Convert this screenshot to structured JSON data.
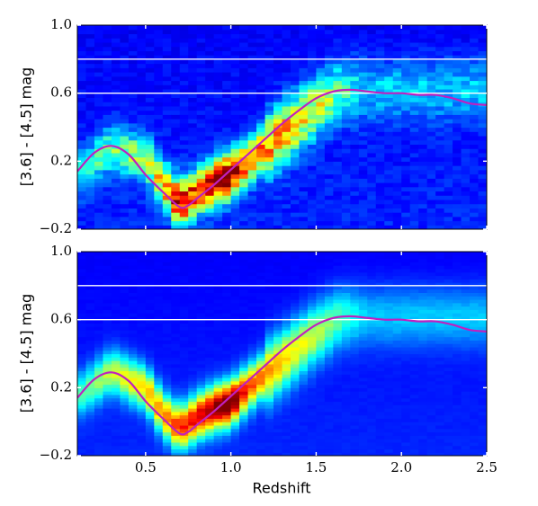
{
  "chart_data": [
    {
      "type": "heatmap",
      "title": "",
      "xlabel": "",
      "ylabel": "[3.6] - [4.5] mag",
      "xlim": [
        0.1,
        2.5
      ],
      "ylim": [
        -0.2,
        1.0
      ],
      "x_ticks": [
        0.5,
        1.0,
        1.5,
        2.0,
        2.5
      ],
      "x_tick_labels": [],
      "y_ticks": [
        -0.2,
        0.2,
        0.6,
        1.0
      ],
      "y_tick_labels": [
        "−0.2",
        "0.2",
        "0.6",
        "1.0"
      ],
      "reference_lines": [
        {
          "y": 0.8,
          "color": "#ffffff"
        },
        {
          "y": 0.6,
          "color": "#ffffff"
        }
      ],
      "colormap": "jet",
      "texture": "blocky",
      "density_ridge": {
        "x": [
          0.1,
          0.3,
          0.5,
          0.6,
          0.7,
          0.8,
          0.9,
          1.0,
          1.1,
          1.3,
          1.5,
          1.65,
          1.8
        ],
        "y": [
          0.12,
          0.28,
          0.22,
          0.07,
          -0.05,
          0.02,
          0.08,
          0.12,
          0.2,
          0.36,
          0.52,
          0.62,
          0.62
        ],
        "strength": [
          0.25,
          0.35,
          0.42,
          0.6,
          0.85,
          0.68,
          0.9,
          0.95,
          0.62,
          0.6,
          0.48,
          0.33,
          0.2
        ]
      },
      "series": [
        {
          "color": "#c020c0",
          "x": [
            0.1,
            0.2,
            0.3,
            0.4,
            0.5,
            0.6,
            0.7,
            0.75,
            0.8,
            0.9,
            1.0,
            1.1,
            1.2,
            1.3,
            1.4,
            1.5,
            1.6,
            1.7,
            1.8,
            1.9,
            2.0,
            2.1,
            2.2,
            2.3,
            2.4,
            2.5
          ],
          "y": [
            0.14,
            0.25,
            0.29,
            0.24,
            0.12,
            0.02,
            -0.07,
            -0.06,
            -0.02,
            0.06,
            0.15,
            0.24,
            0.33,
            0.42,
            0.5,
            0.57,
            0.61,
            0.62,
            0.61,
            0.6,
            0.6,
            0.59,
            0.59,
            0.57,
            0.54,
            0.53
          ]
        }
      ]
    },
    {
      "type": "heatmap",
      "title": "",
      "xlabel": "Redshift",
      "ylabel": "[3.6] - [4.5] mag",
      "xlim": [
        0.1,
        2.5
      ],
      "ylim": [
        -0.2,
        1.0
      ],
      "x_ticks": [
        0.5,
        1.0,
        1.5,
        2.0,
        2.5
      ],
      "x_tick_labels": [
        "0.5",
        "1.0",
        "1.5",
        "2.0",
        "2.5"
      ],
      "y_ticks": [
        -0.2,
        0.2,
        0.6,
        1.0
      ],
      "y_tick_labels": [
        "−0.2",
        "0.2",
        "0.6",
        "1.0"
      ],
      "reference_lines": [
        {
          "y": 0.8,
          "color": "#ffffff"
        },
        {
          "y": 0.6,
          "color": "#ffffff"
        }
      ],
      "colormap": "jet",
      "texture": "smooth",
      "density_ridge": {
        "x": [
          0.1,
          0.3,
          0.5,
          0.6,
          0.7,
          0.8,
          0.9,
          1.0,
          1.1,
          1.3,
          1.5,
          1.65,
          1.8
        ],
        "y": [
          0.15,
          0.3,
          0.2,
          0.05,
          -0.04,
          0.03,
          0.08,
          0.11,
          0.2,
          0.36,
          0.52,
          0.62,
          0.62
        ],
        "strength": [
          0.3,
          0.45,
          0.55,
          0.62,
          0.72,
          0.78,
          0.88,
          0.98,
          0.7,
          0.55,
          0.45,
          0.33,
          0.2
        ]
      },
      "series": [
        {
          "color": "#c020c0",
          "x": [
            0.1,
            0.2,
            0.3,
            0.4,
            0.5,
            0.6,
            0.7,
            0.75,
            0.8,
            0.9,
            1.0,
            1.1,
            1.2,
            1.3,
            1.4,
            1.5,
            1.6,
            1.7,
            1.8,
            1.9,
            2.0,
            2.1,
            2.2,
            2.3,
            2.4,
            2.5
          ],
          "y": [
            0.14,
            0.25,
            0.29,
            0.24,
            0.12,
            0.02,
            -0.07,
            -0.06,
            -0.02,
            0.06,
            0.15,
            0.24,
            0.33,
            0.42,
            0.5,
            0.57,
            0.61,
            0.62,
            0.61,
            0.6,
            0.6,
            0.59,
            0.59,
            0.57,
            0.54,
            0.53
          ]
        }
      ]
    }
  ]
}
